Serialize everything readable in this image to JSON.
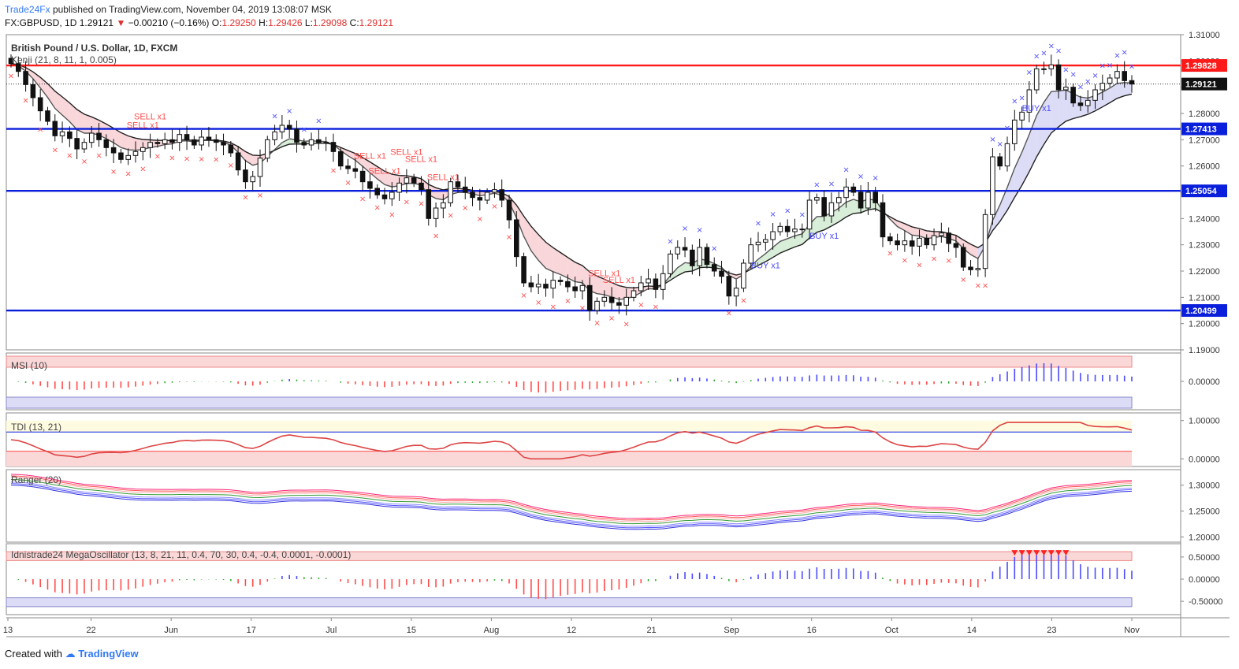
{
  "header": {
    "publisher": "Trade24Fx",
    "published_text": "published on TradingView.com, November 04, 2019 13:08:07 MSK",
    "symbol": "FX:GBPUSD, 1D",
    "last": "1.29121",
    "change": "−0.00210 (−0.16%)",
    "o_label": "O:",
    "o": "1.29250",
    "h_label": "H:",
    "h": "1.29426",
    "l_label": "L:",
    "l": "1.29098",
    "c_label": "C:",
    "c": "1.29121"
  },
  "footer": {
    "created_with": "Created with",
    "brand": "TradingView"
  },
  "colors": {
    "up": "#ffffff",
    "down": "#111111",
    "red_line": "#ff1a1a",
    "blue_line": "#0a1fdb",
    "buy": "#4b4bff",
    "sell": "#ff4b4b",
    "cloud_red": "#f9d6d9",
    "cloud_green": "#d8eed8",
    "cloud_blue": "#dcdcf7"
  },
  "chart_data": [
    {
      "type": "candlestick",
      "title": "British Pound / U.S. Dollar, 1D, FXCM",
      "indicator": "Kenji (21, 8, 11, 1, 0.005)",
      "ylim": [
        1.19,
        1.31
      ],
      "y_ticks": [
        "1.31000",
        "1.30000",
        "1.29000",
        "1.28000",
        "1.27000",
        "1.26000",
        "1.25000",
        "1.24000",
        "1.23000",
        "1.22000",
        "1.21000",
        "1.20000",
        "1.19000"
      ],
      "x_ticks": [
        "13",
        "22",
        "Jun",
        "17",
        "Jul",
        "15",
        "Aug",
        "12",
        "21",
        "Sep",
        "16",
        "Oct",
        "14",
        "23",
        "Nov"
      ],
      "price_labels": [
        {
          "value": "1.29828",
          "kind": "red"
        },
        {
          "value": "1.29121",
          "kind": "last"
        },
        {
          "value": "1.27413",
          "kind": "blue"
        },
        {
          "value": "1.25054",
          "kind": "blue"
        },
        {
          "value": "1.20499",
          "kind": "blue"
        }
      ],
      "levels": [
        {
          "value": 1.29828,
          "color": "red"
        },
        {
          "value": 1.27413,
          "color": "blue"
        },
        {
          "value": 1.25054,
          "color": "blue"
        },
        {
          "value": 1.20499,
          "color": "blue"
        },
        {
          "value": 1.29121,
          "color": "dotted"
        }
      ],
      "close": [
        1.299,
        1.296,
        1.291,
        1.286,
        1.281,
        1.277,
        1.2715,
        1.273,
        1.2705,
        1.2665,
        1.269,
        1.2725,
        1.27,
        1.267,
        1.265,
        1.2625,
        1.264,
        1.2655,
        1.267,
        1.269,
        1.2685,
        1.27,
        1.269,
        1.272,
        1.27,
        1.268,
        1.271,
        1.27,
        1.269,
        1.268,
        1.265,
        1.2585,
        1.254,
        1.256,
        1.263,
        1.27,
        1.273,
        1.2755,
        1.274,
        1.269,
        1.268,
        1.27,
        1.269,
        1.269,
        1.2655,
        1.26,
        1.259,
        1.258,
        1.254,
        1.2515,
        1.249,
        1.2475,
        1.25,
        1.2535,
        1.2555,
        1.2535,
        1.251,
        1.24,
        1.244,
        1.246,
        1.254,
        1.252,
        1.25,
        1.248,
        1.247,
        1.25,
        1.251,
        1.247,
        1.2395,
        1.2255,
        1.2155,
        1.214,
        1.215,
        1.2135,
        1.2165,
        1.216,
        1.214,
        1.2125,
        1.2145,
        1.205,
        1.2085,
        1.21,
        1.208,
        1.207,
        1.21,
        1.2125,
        1.2155,
        1.217,
        1.213,
        1.219,
        1.2265,
        1.229,
        1.228,
        1.222,
        1.229,
        1.2225,
        1.22,
        1.218,
        1.2105,
        1.2135,
        1.223,
        1.23,
        1.231,
        1.232,
        1.235,
        1.237,
        1.235,
        1.236,
        1.236,
        1.247,
        1.248,
        1.241,
        1.246,
        1.248,
        1.252,
        1.25,
        1.244,
        1.25,
        1.246,
        1.233,
        1.2315,
        1.23,
        1.2315,
        1.2295,
        1.2325,
        1.23,
        1.2335,
        1.2345,
        1.2305,
        1.229,
        1.2215,
        1.2205,
        1.221,
        1.2415,
        1.2635,
        1.26,
        1.2685,
        1.2775,
        1.2805,
        1.289,
        1.297,
        1.297,
        1.2985,
        1.289,
        1.29,
        1.284,
        1.283,
        1.285,
        1.289,
        1.2915,
        1.2935,
        1.296,
        1.2925,
        1.2912
      ],
      "signals": [
        {
          "type": "sell",
          "i": 18,
          "text": "SELL x1"
        },
        {
          "type": "sell",
          "i": 19,
          "text": "SELL x1"
        },
        {
          "type": "sell",
          "i": 49,
          "text": "SELL x1"
        },
        {
          "type": "sell",
          "i": 51,
          "text": "SELL x1"
        },
        {
          "type": "sell",
          "i": 54,
          "text": "SELL x1"
        },
        {
          "type": "sell",
          "i": 56,
          "text": "SELL x1"
        },
        {
          "type": "sell",
          "i": 59,
          "text": "SELL x1"
        },
        {
          "type": "sell",
          "i": 81,
          "text": "SELL x1"
        },
        {
          "type": "sell",
          "i": 83,
          "text": "SELL x1"
        },
        {
          "type": "buy",
          "i": 103,
          "text": "BUY x1"
        },
        {
          "type": "buy",
          "i": 111,
          "text": "BUY x1"
        },
        {
          "type": "buy",
          "i": 140,
          "text": "BUY x1"
        }
      ]
    },
    {
      "type": "bar",
      "title": "MSI (10)",
      "ylim": [
        -0.05,
        0.05
      ],
      "y_ticks": [
        "0.00000"
      ]
    },
    {
      "type": "line",
      "title": "TDI (13, 21)",
      "ylim": [
        -0.2,
        1.2
      ],
      "y_ticks": [
        "1.00000",
        "0.00000"
      ]
    },
    {
      "type": "line",
      "title": "Ranger (20)",
      "ylim": [
        1.19,
        1.33
      ],
      "y_ticks": [
        "1.30000",
        "1.25000",
        "1.20000"
      ]
    },
    {
      "type": "bar",
      "title": "Idnistrade24 MegaOscillator (13, 8, 21, 11, 0.4, 70, 30, 0.4, -0.4, 0.0001, -0.0001)",
      "ylim": [
        -0.8,
        0.8
      ],
      "y_ticks": [
        "0.50000",
        "0.00000",
        "-0.50000"
      ]
    }
  ]
}
